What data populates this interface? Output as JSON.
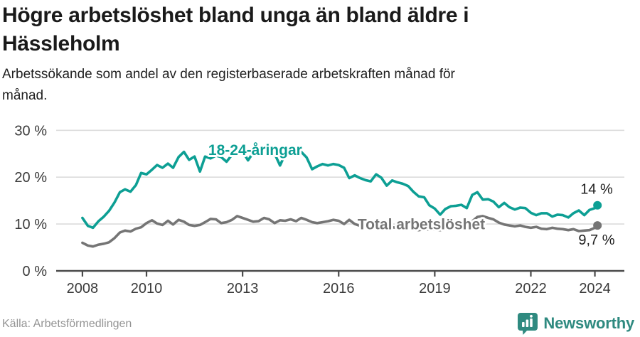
{
  "chart_data": {
    "type": "line",
    "title": "Högre arbetslöshet bland unga än bland äldre i Hässleholm",
    "subtitle": "Arbetssökande som andel av den registerbaserade arbetskraften månad för månad.",
    "xlabel": "",
    "ylabel": "",
    "xlim": [
      2007.18,
      2024.92
    ],
    "ylim": [
      0,
      30
    ],
    "grid": "horizontal-light",
    "x_ticks": [
      {
        "value": 2008,
        "label": "2008"
      },
      {
        "value": 2010,
        "label": "2010"
      },
      {
        "value": 2013,
        "label": "2013"
      },
      {
        "value": 2016,
        "label": "2016"
      },
      {
        "value": 2019,
        "label": "2019"
      },
      {
        "value": 2022,
        "label": "2022"
      },
      {
        "value": 2024,
        "label": "2024"
      }
    ],
    "y_ticks": [
      {
        "value": 0,
        "label": "0 %"
      },
      {
        "value": 10,
        "label": "10 %"
      },
      {
        "value": 20,
        "label": "20 %"
      },
      {
        "value": 30,
        "label": "30 %"
      }
    ],
    "x": [
      2008,
      2008.17,
      2008.33,
      2008.5,
      2008.67,
      2008.83,
      2009,
      2009.17,
      2009.33,
      2009.5,
      2009.67,
      2009.83,
      2010,
      2010.17,
      2010.33,
      2010.5,
      2010.67,
      2010.83,
      2011,
      2011.17,
      2011.33,
      2011.5,
      2011.67,
      2011.83,
      2012,
      2012.17,
      2012.33,
      2012.5,
      2012.67,
      2012.83,
      2013,
      2013.17,
      2013.33,
      2013.5,
      2013.67,
      2013.83,
      2014,
      2014.17,
      2014.33,
      2014.5,
      2014.67,
      2014.83,
      2015,
      2015.17,
      2015.33,
      2015.5,
      2015.67,
      2015.83,
      2016,
      2016.17,
      2016.33,
      2016.5,
      2016.67,
      2016.83,
      2017,
      2017.17,
      2017.33,
      2017.5,
      2017.67,
      2017.83,
      2018,
      2018.17,
      2018.33,
      2018.5,
      2018.67,
      2018.83,
      2019,
      2019.17,
      2019.33,
      2019.5,
      2019.67,
      2019.83,
      2020,
      2020.17,
      2020.33,
      2020.5,
      2020.67,
      2020.83,
      2021,
      2021.17,
      2021.33,
      2021.5,
      2021.67,
      2021.83,
      2022,
      2022.17,
      2022.33,
      2022.5,
      2022.67,
      2022.83,
      2023,
      2023.17,
      2023.33,
      2023.5,
      2023.67,
      2023.83,
      2024,
      2024.08
    ],
    "series": [
      {
        "name": "18-24-åringar",
        "color": "#0d9f94",
        "end_label": "14 %",
        "end_value": 14.0,
        "values": [
          11.3,
          9.6,
          9.2,
          10.6,
          11.6,
          12.8,
          14.6,
          16.8,
          17.4,
          16.9,
          18.3,
          20.9,
          20.6,
          21.6,
          22.6,
          22.0,
          22.9,
          22.0,
          24.3,
          25.4,
          23.7,
          24.4,
          21.2,
          24.4,
          24.0,
          24.6,
          24.3,
          23.3,
          24.8,
          24.7,
          25.5,
          23.6,
          25.2,
          24.6,
          25.3,
          25.4,
          25.0,
          22.5,
          24.9,
          25.6,
          25.3,
          25.4,
          24.2,
          21.7,
          22.3,
          22.8,
          22.5,
          22.8,
          22.6,
          22.0,
          19.8,
          20.4,
          19.8,
          19.4,
          19.1,
          20.6,
          19.9,
          18.2,
          19.3,
          18.9,
          18.6,
          18.1,
          16.9,
          15.9,
          15.7,
          14.0,
          13.3,
          12.0,
          13.2,
          13.8,
          13.9,
          14.1,
          13.4,
          16.2,
          16.8,
          15.2,
          15.3,
          14.8,
          13.6,
          14.5,
          13.6,
          13.1,
          13.5,
          13.4,
          12.4,
          11.9,
          12.3,
          12.3,
          11.6,
          12.0,
          11.9,
          11.4,
          12.3,
          12.9,
          11.9,
          13.0,
          13.4,
          14.0
        ]
      },
      {
        "name": "Total arbetslöshet",
        "color": "#757575",
        "end_label": "9,7 %",
        "end_value": 9.7,
        "values": [
          6.0,
          5.4,
          5.2,
          5.6,
          5.8,
          6.1,
          7.0,
          8.2,
          8.6,
          8.4,
          9.0,
          9.3,
          10.2,
          10.8,
          10.1,
          9.8,
          10.7,
          9.9,
          10.9,
          10.5,
          9.8,
          9.6,
          9.8,
          10.4,
          11.1,
          11.0,
          10.2,
          10.4,
          10.9,
          11.7,
          11.3,
          10.9,
          10.5,
          10.6,
          11.3,
          11.0,
          10.2,
          10.8,
          10.7,
          11.0,
          10.6,
          11.3,
          10.9,
          10.4,
          10.2,
          10.4,
          10.6,
          10.9,
          10.7,
          10.0,
          10.9,
          10.0,
          9.6,
          9.4,
          9.5,
          9.7,
          9.3,
          9.1,
          9.3,
          9.2,
          9.0,
          9.2,
          8.9,
          8.7,
          8.9,
          8.8,
          8.8,
          8.7,
          8.9,
          9.2,
          9.3,
          9.4,
          9.5,
          10.6,
          11.5,
          11.7,
          11.3,
          11.0,
          10.3,
          9.9,
          9.7,
          9.5,
          9.7,
          9.4,
          9.2,
          9.4,
          9.0,
          8.9,
          9.2,
          9.0,
          8.9,
          8.7,
          8.9,
          8.5,
          8.6,
          8.7,
          9.2,
          9.7
        ]
      }
    ],
    "annotations": [
      {
        "text": "18-24-åringar",
        "x": 2011.93,
        "y": 25.6,
        "color": "#0d9f94",
        "anchor": "start",
        "bold": true,
        "size": 21
      },
      {
        "text": "Total arbetslöshet",
        "x": 2016.59,
        "y": 9.7,
        "color": "#757575",
        "anchor": "start",
        "bold": true,
        "size": 21
      },
      {
        "text": "14 %",
        "x": 2024.56,
        "y": 17.3,
        "color": "#1d1d1d",
        "anchor": "end",
        "bold": false,
        "size": 20
      },
      {
        "text": "9,7 %",
        "x": 2024.62,
        "y": 6.4,
        "color": "#1d1d1d",
        "anchor": "end",
        "bold": false,
        "size": 20
      }
    ],
    "legend_position": "inline-labels"
  },
  "footer": {
    "source": "Källa: Arbetsförmedlingen",
    "brand_name": "Newsworthy",
    "brand_icon": "bar-chart-bubble-icon"
  },
  "colors": {
    "accent_teal": "#0d9f94",
    "series_gray": "#757575",
    "brand_teal": "#2f8a80",
    "title_text": "#1a1a1a",
    "tick_text": "#3a3a3a",
    "gridline": "#dcdcdc",
    "axis_line": "#4a4a4a",
    "source_text": "#949494",
    "background": "#ffffff"
  }
}
